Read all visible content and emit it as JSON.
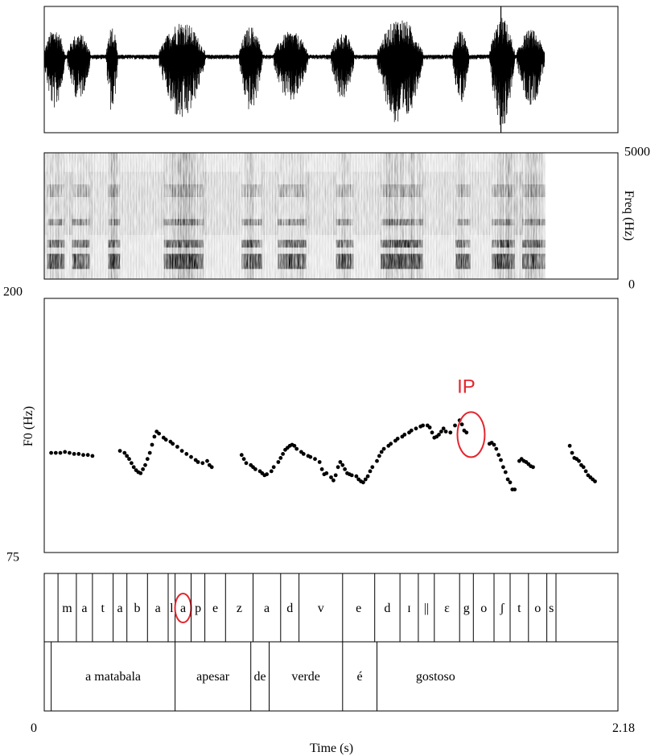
{
  "chart_data": {
    "type": "scatter",
    "time_axis": {
      "label": "Time (s)",
      "min_label": "0",
      "max_label": "2.18",
      "xlim": [
        0,
        2.18
      ]
    },
    "waveform": {
      "panel": "oscillogram",
      "cursor_time": 1.99
    },
    "spectrogram": {
      "ylabel": "Freq (Hz)",
      "ymin_label": "0",
      "ymax_label": "5000",
      "ylim": [
        0,
        5000
      ]
    },
    "pitch": {
      "ylabel": "F0 (Hz)",
      "ymin_label": "75",
      "ymax_label": "200",
      "ylim": [
        75,
        200
      ],
      "annotation": {
        "text": "IP",
        "color": "#e3262f",
        "time": 1.86,
        "f0": 133
      },
      "series": [
        {
          "points": [
            [
              0.03,
              124
            ],
            [
              0.05,
              124
            ],
            [
              0.07,
              124
            ],
            [
              0.09,
              124.5
            ],
            [
              0.11,
              124
            ],
            [
              0.13,
              123.5
            ],
            [
              0.15,
              123.5
            ],
            [
              0.17,
              123
            ],
            [
              0.19,
              123
            ],
            [
              0.21,
              122.5
            ],
            [
              0.33,
              125
            ],
            [
              0.35,
              124
            ],
            [
              0.36,
              122.5
            ],
            [
              0.37,
              121
            ],
            [
              0.38,
              119
            ],
            [
              0.39,
              117
            ],
            [
              0.4,
              115.5
            ],
            [
              0.41,
              114.5
            ],
            [
              0.42,
              114
            ],
            [
              0.43,
              116
            ],
            [
              0.44,
              118
            ],
            [
              0.45,
              121
            ],
            [
              0.46,
              124
            ],
            [
              0.47,
              128
            ],
            [
              0.48,
              132
            ],
            [
              0.49,
              134.5
            ],
            [
              0.5,
              133.5
            ],
            [
              0.52,
              131.5
            ],
            [
              0.53,
              130.5
            ],
            [
              0.55,
              129.5
            ],
            [
              0.56,
              128.5
            ],
            [
              0.58,
              127
            ],
            [
              0.6,
              125
            ],
            [
              0.62,
              123.5
            ],
            [
              0.64,
              122
            ],
            [
              0.66,
              120.5
            ],
            [
              0.67,
              119.5
            ],
            [
              0.69,
              119
            ],
            [
              0.71,
              120
            ],
            [
              0.72,
              118
            ],
            [
              0.73,
              117
            ],
            [
              0.86,
              123
            ],
            [
              0.87,
              121
            ],
            [
              0.88,
              119
            ],
            [
              0.9,
              118
            ],
            [
              0.91,
              117
            ],
            [
              0.92,
              116
            ],
            [
              0.94,
              115
            ],
            [
              0.95,
              114
            ],
            [
              0.96,
              113
            ],
            [
              0.97,
              113.5
            ],
            [
              0.99,
              115
            ],
            [
              1.0,
              117
            ],
            [
              1.02,
              119.5
            ],
            [
              1.03,
              121.5
            ],
            [
              1.04,
              123.5
            ],
            [
              1.05,
              125.5
            ],
            [
              1.06,
              126.5
            ],
            [
              1.07,
              127.5
            ],
            [
              1.08,
              128
            ],
            [
              1.09,
              127.5
            ],
            [
              1.1,
              126
            ],
            [
              1.12,
              124.5
            ],
            [
              1.13,
              123.5
            ],
            [
              1.15,
              122.5
            ],
            [
              1.16,
              122
            ],
            [
              1.18,
              121
            ],
            [
              1.2,
              119.5
            ],
            [
              1.21,
              116
            ],
            [
              1.22,
              113.5
            ],
            [
              1.23,
              114
            ],
            [
              1.25,
              112
            ],
            [
              1.26,
              110.5
            ],
            [
              1.27,
              113
            ],
            [
              1.28,
              117
            ],
            [
              1.29,
              119.5
            ],
            [
              1.3,
              118
            ],
            [
              1.31,
              116
            ],
            [
              1.32,
              114
            ],
            [
              1.33,
              113.5
            ],
            [
              1.34,
              113
            ],
            [
              1.36,
              112.5
            ],
            [
              1.37,
              111
            ],
            [
              1.38,
              110
            ],
            [
              1.39,
              109.5
            ],
            [
              1.4,
              111
            ],
            [
              1.41,
              112.5
            ],
            [
              1.42,
              115
            ],
            [
              1.43,
              117
            ],
            [
              1.45,
              120
            ],
            [
              1.46,
              122.5
            ],
            [
              1.47,
              124.5
            ],
            [
              1.48,
              126
            ],
            [
              1.5,
              127.5
            ],
            [
              1.51,
              128.5
            ],
            [
              1.53,
              130
            ],
            [
              1.54,
              131
            ],
            [
              1.56,
              132
            ],
            [
              1.57,
              133
            ],
            [
              1.59,
              134
            ],
            [
              1.6,
              135
            ],
            [
              1.62,
              136
            ],
            [
              1.64,
              137
            ],
            [
              1.65,
              137.5
            ],
            [
              1.67,
              137.5
            ],
            [
              1.68,
              136.5
            ],
            [
              1.69,
              134
            ],
            [
              1.7,
              131.5
            ],
            [
              1.71,
              132
            ],
            [
              1.72,
              133
            ],
            [
              1.73,
              134.5
            ],
            [
              1.74,
              136
            ],
            [
              1.75,
              134.5
            ],
            [
              1.77,
              134
            ],
            [
              1.79,
              137.5
            ],
            [
              1.81,
              140
            ],
            [
              1.82,
              138
            ],
            [
              1.83,
              135
            ],
            [
              1.84,
              134
            ],
            [
              1.94,
              128.5
            ],
            [
              1.95,
              129
            ],
            [
              1.96,
              128
            ],
            [
              1.97,
              126
            ],
            [
              1.98,
              123
            ],
            [
              1.99,
              120.5
            ],
            [
              2.0,
              117
            ],
            [
              2.01,
              114.5
            ],
            [
              2.02,
              111
            ],
            [
              2.03,
              109.5
            ],
            [
              2.04,
              106
            ],
            [
              2.05,
              106
            ],
            [
              2.07,
              120
            ],
            [
              2.08,
              121
            ],
            [
              2.09,
              120
            ],
            [
              2.1,
              119.5
            ],
            [
              2.11,
              118.5
            ],
            [
              2.12,
              117.5
            ],
            [
              2.13,
              117
            ],
            [
              2.29,
              127.5
            ],
            [
              2.3,
              124
            ],
            [
              2.31,
              121.5
            ],
            [
              2.32,
              121
            ],
            [
              2.33,
              120
            ],
            [
              2.34,
              118
            ],
            [
              2.35,
              117
            ],
            [
              2.36,
              115
            ],
            [
              2.37,
              113
            ],
            [
              2.38,
              112
            ],
            [
              2.39,
              111
            ],
            [
              2.4,
              110
            ]
          ]
        }
      ]
    },
    "tiers": [
      {
        "name": "segments",
        "intervals": [
          {
            "label": "m",
            "highlight": false
          },
          {
            "label": "a",
            "highlight": false
          },
          {
            "label": "t",
            "highlight": false
          },
          {
            "label": "a",
            "highlight": false
          },
          {
            "label": "b",
            "highlight": false
          },
          {
            "label": "a",
            "highlight": false
          },
          {
            "label": "l",
            "highlight": false
          },
          {
            "label": "a",
            "highlight": true
          },
          {
            "label": "p",
            "highlight": false
          },
          {
            "label": "e",
            "highlight": false
          },
          {
            "label": "z",
            "highlight": false
          },
          {
            "label": "a",
            "highlight": false
          },
          {
            "label": "d",
            "highlight": false
          },
          {
            "label": "v",
            "highlight": false
          },
          {
            "label": "e",
            "highlight": false
          },
          {
            "label": "d",
            "highlight": false
          },
          {
            "label": "ɪ",
            "highlight": false
          },
          {
            "label": "||",
            "highlight": false
          },
          {
            "label": "ɛ",
            "highlight": false
          },
          {
            "label": "g",
            "highlight": false
          },
          {
            "label": "o",
            "highlight": false
          },
          {
            "label": "ʃ",
            "highlight": false
          },
          {
            "label": "t",
            "highlight": false
          },
          {
            "label": "o",
            "highlight": false
          },
          {
            "label": "s",
            "highlight": false
          }
        ]
      },
      {
        "name": "words",
        "intervals": [
          {
            "label": "a matabala"
          },
          {
            "label": "apesar"
          },
          {
            "label": "de"
          },
          {
            "label": "verde"
          },
          {
            "label": "é"
          },
          {
            "label": "gostoso"
          }
        ]
      }
    ],
    "colors": {
      "annotation": "#e3262f",
      "ink": "#000000"
    }
  }
}
